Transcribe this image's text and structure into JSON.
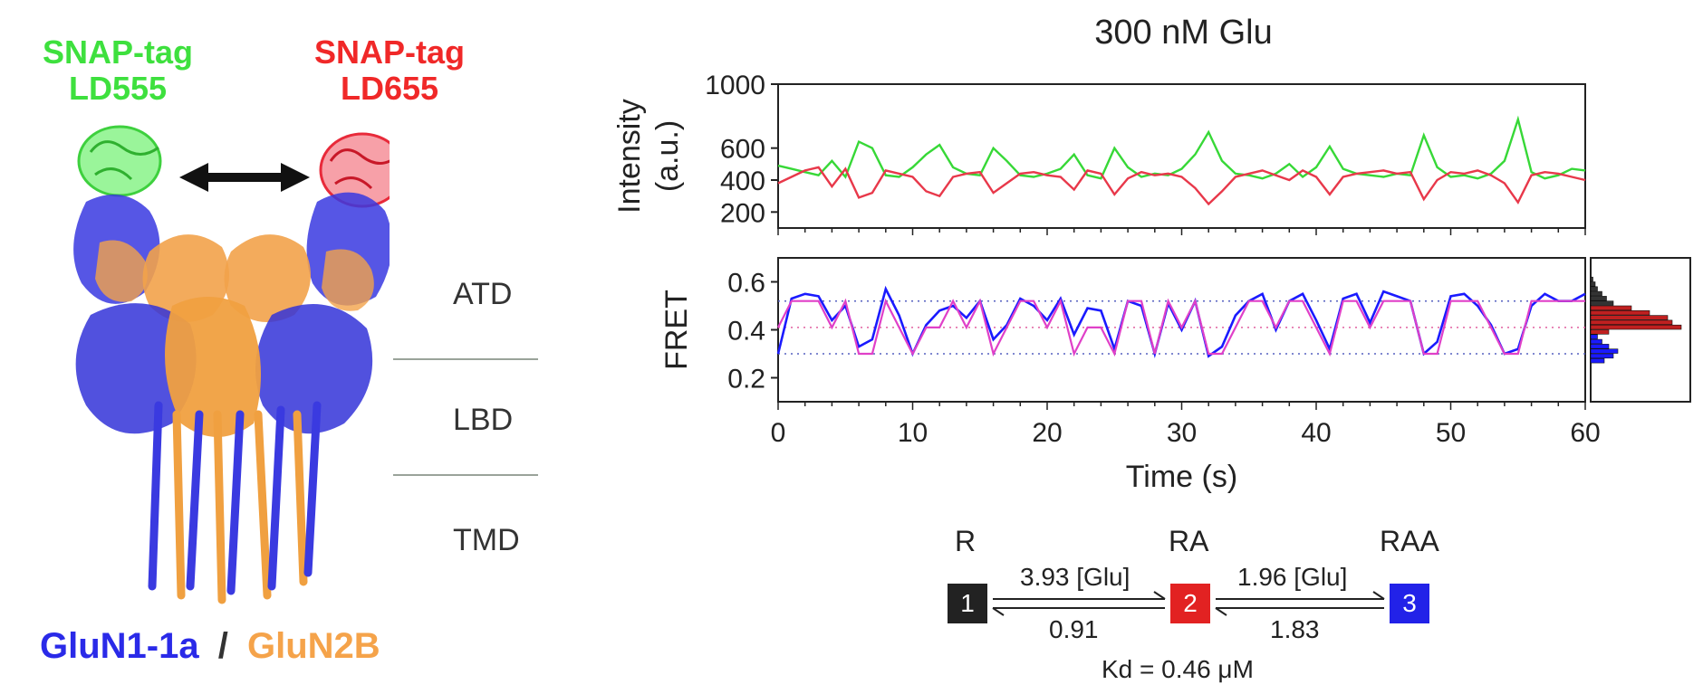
{
  "structure": {
    "donor_tag": {
      "line1": "SNAP-tag",
      "line2": "LD555",
      "color": "#3ee03e"
    },
    "acceptor_tag": {
      "line1": "SNAP-tag",
      "line2": "LD655",
      "color": "#f02828"
    },
    "regions": [
      "ATD",
      "LBD",
      "TMD"
    ],
    "subunit_a": {
      "label": "GluN1-1a",
      "color": "#2a2ae8"
    },
    "separator": "/",
    "subunit_b": {
      "label": "GluN2B",
      "color": "#f5a34a"
    }
  },
  "chart_data": [
    {
      "type": "line",
      "title": "300 nM Glu",
      "ylabel": "Intensity\n(a.u.)",
      "ylim": [
        100,
        1000
      ],
      "yticks": [
        "1000",
        "600",
        "400",
        "200"
      ],
      "xlim": [
        0,
        60
      ],
      "series": [
        {
          "color": "#37d837",
          "x": [
            0,
            1,
            2,
            3,
            4,
            5,
            6,
            7,
            8,
            9,
            10,
            11,
            12,
            13,
            14,
            15,
            16,
            17,
            18,
            19,
            20,
            21,
            22,
            23,
            24,
            25,
            26,
            27,
            28,
            29,
            30,
            31,
            32,
            33,
            34,
            35,
            36,
            37,
            38,
            39,
            40,
            41,
            42,
            43,
            44,
            45,
            46,
            47,
            48,
            49,
            50,
            51,
            52,
            53,
            54,
            55,
            56,
            57,
            58,
            59,
            60
          ],
          "values": [
            490,
            470,
            450,
            430,
            520,
            420,
            640,
            600,
            430,
            420,
            480,
            560,
            620,
            480,
            440,
            430,
            600,
            520,
            430,
            420,
            440,
            470,
            560,
            430,
            410,
            600,
            480,
            420,
            440,
            430,
            470,
            560,
            700,
            520,
            440,
            430,
            410,
            440,
            500,
            420,
            480,
            610,
            470,
            440,
            430,
            420,
            440,
            430,
            680,
            480,
            420,
            430,
            410,
            440,
            520,
            780,
            450,
            410,
            430,
            470,
            460
          ]
        },
        {
          "color": "#e8384a",
          "x": [
            0,
            1,
            2,
            3,
            4,
            5,
            6,
            7,
            8,
            9,
            10,
            11,
            12,
            13,
            14,
            15,
            16,
            17,
            18,
            19,
            20,
            21,
            22,
            23,
            24,
            25,
            26,
            27,
            28,
            29,
            30,
            31,
            32,
            33,
            34,
            35,
            36,
            37,
            38,
            39,
            40,
            41,
            42,
            43,
            44,
            45,
            46,
            47,
            48,
            49,
            50,
            51,
            52,
            53,
            54,
            55,
            56,
            57,
            58,
            59,
            60
          ],
          "values": [
            380,
            420,
            460,
            480,
            360,
            470,
            290,
            320,
            460,
            440,
            420,
            330,
            300,
            420,
            440,
            450,
            320,
            380,
            440,
            450,
            430,
            420,
            340,
            460,
            440,
            310,
            410,
            450,
            430,
            440,
            420,
            350,
            250,
            330,
            420,
            440,
            460,
            430,
            400,
            460,
            420,
            310,
            420,
            440,
            450,
            460,
            440,
            450,
            280,
            400,
            450,
            440,
            460,
            430,
            380,
            260,
            430,
            450,
            440,
            420,
            400
          ]
        }
      ]
    },
    {
      "type": "line",
      "ylabel": "FRET",
      "xlabel": "Time (s)",
      "ylim": [
        0.1,
        0.7
      ],
      "yticks": [
        "0.6",
        "0.4",
        "0.2"
      ],
      "xlim": [
        0,
        60
      ],
      "xticks": [
        "0",
        "10",
        "20",
        "30",
        "40",
        "50",
        "60"
      ],
      "state_levels": [
        0.52,
        0.41,
        0.3
      ],
      "series": [
        {
          "name": "FRET trace",
          "color": "#1a1aff",
          "x": [
            0,
            1,
            2,
            3,
            4,
            5,
            6,
            7,
            8,
            9,
            10,
            11,
            12,
            13,
            14,
            15,
            16,
            17,
            18,
            19,
            20,
            21,
            22,
            23,
            24,
            25,
            26,
            27,
            28,
            29,
            30,
            31,
            32,
            33,
            34,
            35,
            36,
            37,
            38,
            39,
            40,
            41,
            42,
            43,
            44,
            45,
            46,
            47,
            48,
            49,
            50,
            51,
            52,
            53,
            54,
            55,
            56,
            57,
            58,
            59,
            60
          ],
          "values": [
            0.3,
            0.53,
            0.55,
            0.54,
            0.44,
            0.5,
            0.33,
            0.36,
            0.57,
            0.46,
            0.3,
            0.42,
            0.48,
            0.5,
            0.45,
            0.52,
            0.36,
            0.42,
            0.53,
            0.5,
            0.44,
            0.53,
            0.38,
            0.49,
            0.48,
            0.32,
            0.52,
            0.5,
            0.3,
            0.51,
            0.4,
            0.52,
            0.29,
            0.33,
            0.46,
            0.52,
            0.55,
            0.4,
            0.52,
            0.55,
            0.44,
            0.32,
            0.53,
            0.55,
            0.43,
            0.56,
            0.54,
            0.52,
            0.3,
            0.35,
            0.54,
            0.55,
            0.5,
            0.42,
            0.3,
            0.32,
            0.5,
            0.55,
            0.52,
            0.52,
            0.55
          ]
        },
        {
          "name": "idealized",
          "color": "#e040c8",
          "x": [
            0,
            1,
            2,
            3,
            4,
            5,
            6,
            7,
            8,
            9,
            10,
            11,
            12,
            13,
            14,
            15,
            16,
            17,
            18,
            19,
            20,
            21,
            22,
            23,
            24,
            25,
            26,
            27,
            28,
            29,
            30,
            31,
            32,
            33,
            34,
            35,
            36,
            37,
            38,
            39,
            40,
            41,
            42,
            43,
            44,
            45,
            46,
            47,
            48,
            49,
            50,
            51,
            52,
            53,
            54,
            55,
            56,
            57,
            58,
            59,
            60
          ],
          "values": [
            0.41,
            0.52,
            0.52,
            0.52,
            0.41,
            0.52,
            0.3,
            0.3,
            0.52,
            0.41,
            0.3,
            0.41,
            0.41,
            0.52,
            0.41,
            0.52,
            0.3,
            0.41,
            0.52,
            0.52,
            0.41,
            0.52,
            0.3,
            0.41,
            0.41,
            0.3,
            0.52,
            0.52,
            0.3,
            0.52,
            0.41,
            0.52,
            0.3,
            0.3,
            0.41,
            0.52,
            0.52,
            0.41,
            0.52,
            0.52,
            0.41,
            0.3,
            0.52,
            0.52,
            0.41,
            0.52,
            0.52,
            0.52,
            0.3,
            0.3,
            0.52,
            0.52,
            0.52,
            0.41,
            0.3,
            0.3,
            0.52,
            0.52,
            0.52,
            0.52,
            0.52
          ]
        }
      ]
    },
    {
      "type": "bar",
      "orientation": "horizontal",
      "note": "FRET histogram sharing the FRET axis",
      "bins": [
        0.27,
        0.29,
        0.31,
        0.33,
        0.35,
        0.37,
        0.39,
        0.41,
        0.43,
        0.45,
        0.47,
        0.49,
        0.51,
        0.53,
        0.55,
        0.57,
        0.59,
        0.61
      ],
      "values": [
        6,
        10,
        12,
        8,
        5,
        3,
        8,
        40,
        36,
        34,
        26,
        18,
        10,
        7,
        5,
        3,
        2,
        1
      ],
      "colors": [
        "#1a1aff",
        "#1a1aff",
        "#1a1aff",
        "#1a1aff",
        "#1a1aff",
        "#1a1aff",
        "#c02020",
        "#c02020",
        "#c02020",
        "#c02020",
        "#c02020",
        "#c02020",
        "#333333",
        "#333333",
        "#333333",
        "#333333",
        "#333333",
        "#333333"
      ]
    }
  ],
  "scheme": {
    "states": [
      {
        "label": "R",
        "box": "1",
        "color": "#222222"
      },
      {
        "label": "RA",
        "box": "2",
        "color": "#e22222"
      },
      {
        "label": "RAA",
        "box": "3",
        "color": "#2222e8"
      }
    ],
    "rates": [
      {
        "forward": "3.93 [Glu]",
        "reverse": "0.91"
      },
      {
        "forward": "1.96 [Glu]",
        "reverse": "1.83"
      }
    ],
    "kd": "Kd = 0.46 μM"
  }
}
